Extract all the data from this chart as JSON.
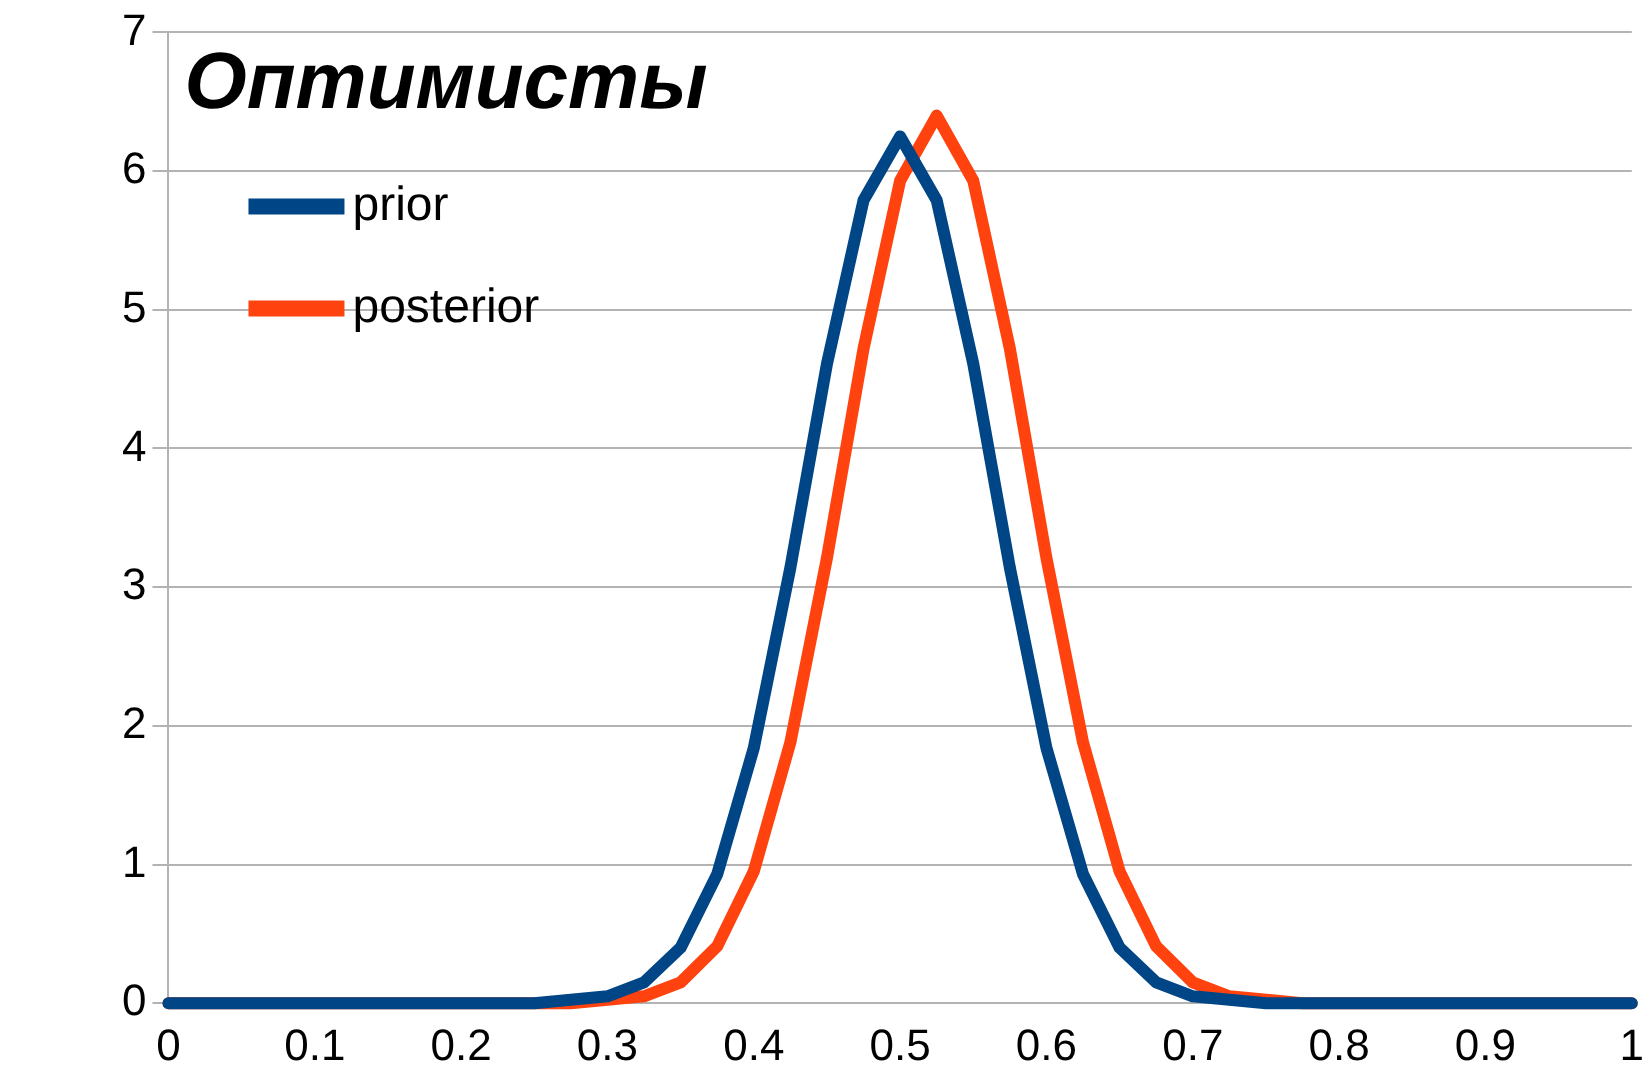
{
  "chart_data": {
    "type": "line",
    "title": "Оптимисты",
    "xlim": [
      0,
      1
    ],
    "xticks": [
      0,
      0.1,
      0.2,
      0.3,
      0.4,
      0.5,
      0.6,
      0.7,
      0.8,
      0.9,
      1
    ],
    "ylim": [
      0,
      7
    ],
    "yticks": [
      0,
      1,
      2,
      3,
      4,
      5,
      6,
      7
    ],
    "grid": "y",
    "legend": "top left",
    "marker": "none",
    "line_style": "solid",
    "series": [
      {
        "name": "prior",
        "color": "#004586",
        "x": [
          0,
          0.25,
          0.3,
          0.325,
          0.35,
          0.375,
          0.4,
          0.425,
          0.45,
          0.475,
          0.5,
          0.525,
          0.55,
          0.575,
          0.6,
          0.625,
          0.65,
          0.675,
          0.7,
          0.75,
          1
        ],
        "values": [
          0,
          0,
          0.05,
          0.15,
          0.4,
          0.93,
          1.84,
          3.14,
          4.61,
          5.79,
          6.25,
          5.79,
          4.61,
          3.14,
          1.84,
          0.93,
          0.4,
          0.15,
          0.05,
          0,
          0
        ]
      },
      {
        "name": "posterior",
        "color": "#ff420e",
        "x": [
          0,
          0.275,
          0.325,
          0.35,
          0.375,
          0.4,
          0.425,
          0.45,
          0.475,
          0.5,
          0.525,
          0.55,
          0.575,
          0.6,
          0.625,
          0.65,
          0.675,
          0.7,
          0.725,
          0.775,
          1
        ],
        "values": [
          0,
          0,
          0.05,
          0.15,
          0.41,
          0.95,
          1.88,
          3.21,
          4.72,
          5.93,
          6.4,
          5.93,
          4.72,
          3.21,
          1.88,
          0.95,
          0.41,
          0.15,
          0.05,
          0,
          0
        ]
      }
    ]
  }
}
